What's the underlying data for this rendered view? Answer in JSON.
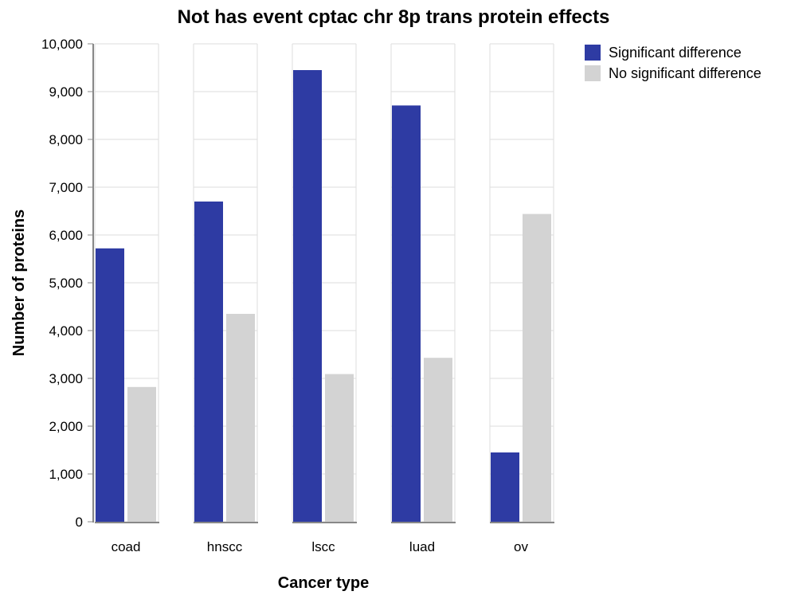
{
  "chart_data": {
    "type": "bar",
    "title": "Not has event cptac chr 8p trans protein effects",
    "xlabel": "Cancer type",
    "ylabel": "Number of proteins",
    "categories": [
      "coad",
      "hnscc",
      "lscc",
      "luad",
      "ov"
    ],
    "series": [
      {
        "name": "Significant difference",
        "color": "#2e3ba3",
        "values": [
          5720,
          6700,
          9450,
          8710,
          1450
        ]
      },
      {
        "name": "No significant difference",
        "color": "#d3d3d3",
        "values": [
          2820,
          4350,
          3090,
          3430,
          6440
        ]
      }
    ],
    "ylim": [
      0,
      10000
    ],
    "yticks": [
      "0",
      "1,000",
      "2,000",
      "3,000",
      "4,000",
      "5,000",
      "6,000",
      "7,000",
      "8,000",
      "9,000",
      "10,000"
    ],
    "grid": true,
    "legend_position": "top-right"
  }
}
